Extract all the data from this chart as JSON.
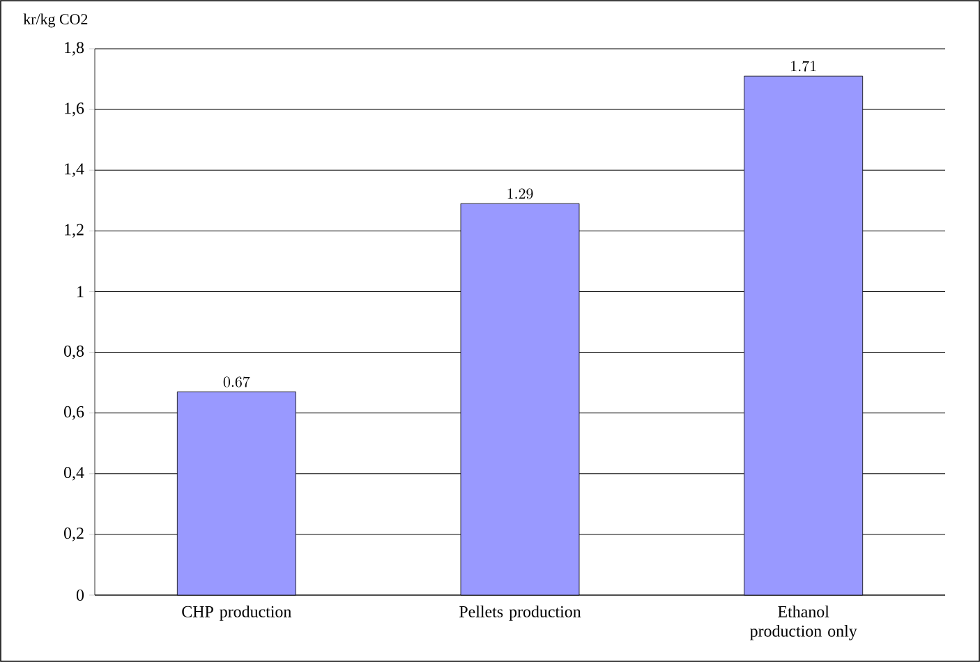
{
  "chart_data": {
    "type": "bar",
    "ylabel": "kr/kg CO2",
    "categories": [
      "CHP production",
      "Pellets production",
      "Ethanol production only"
    ],
    "values": [
      0.67,
      1.29,
      1.71
    ],
    "color": "#9999ff",
    "data_labels": true,
    "ylim": [
      0,
      1.8
    ],
    "yticks": [
      0,
      {
        "value": 0.2,
        "label": "0,2"
      },
      {
        "value": 0.4,
        "label": "0,4"
      },
      {
        "value": 0.6,
        "label": "0,6"
      },
      {
        "value": 0.8,
        "label": "0,8"
      },
      1,
      {
        "value": 1.2,
        "label": "1,2"
      },
      {
        "value": 1.4,
        "label": "1,4"
      },
      {
        "value": 1.6,
        "label": "1,6"
      },
      {
        "value": 1.8,
        "label": "1,8"
      }
    ],
    "grid": "y"
  }
}
